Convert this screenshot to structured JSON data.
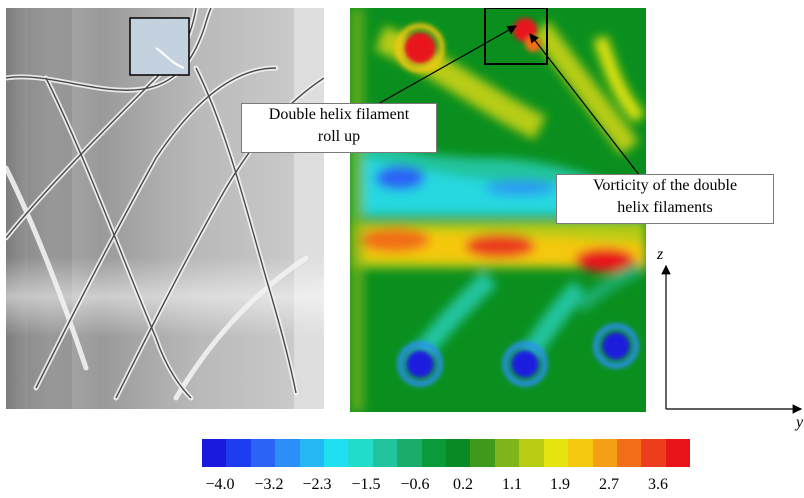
{
  "annotations": {
    "filament_line1": "Double helix filament",
    "filament_line2": "roll up",
    "vorticity_line1": "Vorticity of the double",
    "vorticity_line2": "helix filaments"
  },
  "axes": {
    "vertical": "z",
    "horizontal": "y"
  },
  "colorbar": {
    "tick_labels": [
      "−4.0",
      "−3.2",
      "−2.3",
      "−1.5",
      "−0.6",
      "0.2",
      "1.1",
      "1.9",
      "2.7",
      "3.6"
    ],
    "colors": [
      "#1a1adf",
      "#1f3df0",
      "#2a63f5",
      "#2c8ef7",
      "#26b8f5",
      "#1ee0f0",
      "#22dccc",
      "#21c49e",
      "#1aac6a",
      "#0b9a3a",
      "#0a8a24",
      "#3f9a1c",
      "#7fb41a",
      "#b8cc14",
      "#e5e410",
      "#f5c810",
      "#f59f14",
      "#f26e18",
      "#ec3d1c",
      "#e8141a"
    ]
  },
  "colors": {
    "panel_green": "#0a8f1e",
    "box_frame": "#000000"
  }
}
